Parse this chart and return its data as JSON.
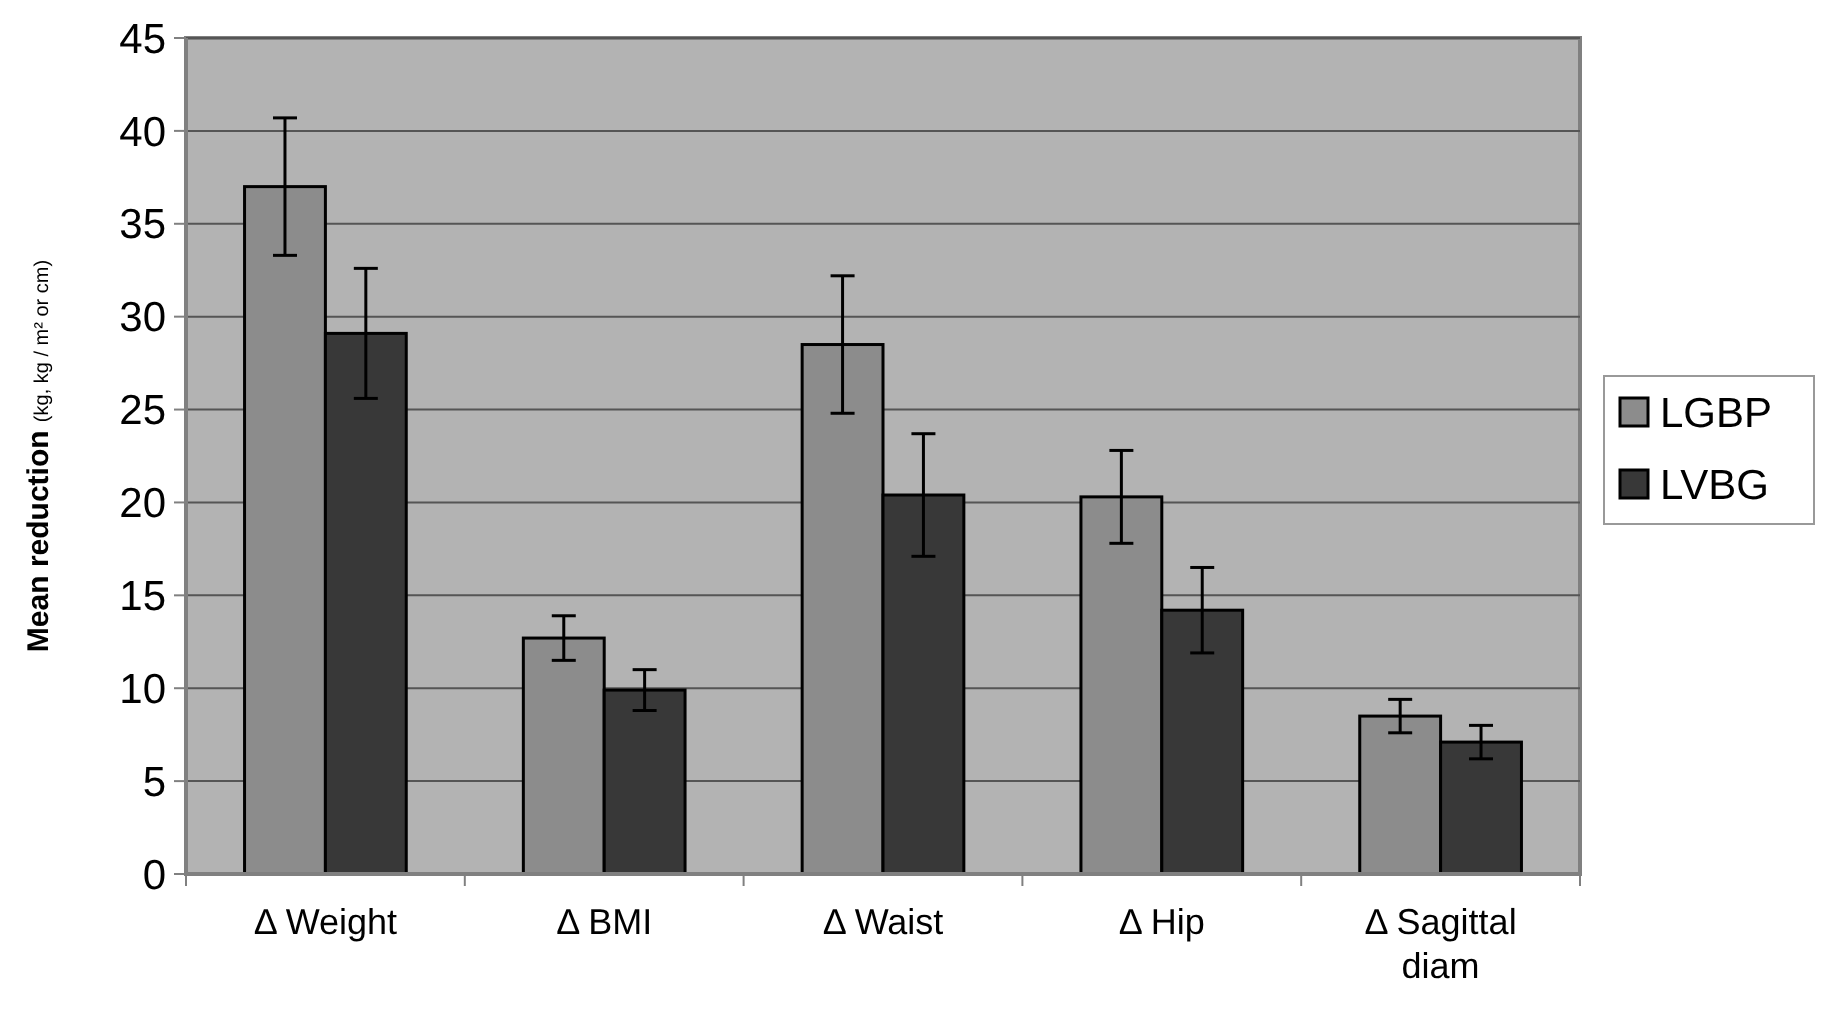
{
  "chart_data": {
    "type": "bar",
    "ylabel": "Mean reduction (kg, kg / m² or cm)",
    "categories": [
      "Δ Weight",
      "Δ BMI",
      "Δ Waist",
      "Δ Hip",
      "Δ Sagittal diam"
    ],
    "series": [
      {
        "name": "LGBP",
        "color": "#8c8c8c",
        "values": [
          37,
          12.7,
          28.5,
          20.3,
          8.5
        ],
        "errors": [
          3.7,
          1.2,
          3.7,
          2.5,
          0.9
        ]
      },
      {
        "name": "LVBG",
        "color": "#383838",
        "values": [
          29.1,
          9.9,
          20.4,
          14.2,
          7.1
        ],
        "errors": [
          3.5,
          1.1,
          3.3,
          2.3,
          0.9
        ]
      }
    ],
    "ylim": [
      0,
      45
    ],
    "yticks": [
      0,
      5,
      10,
      15,
      20,
      25,
      30,
      35,
      40,
      45
    ],
    "grid": "y",
    "legend": "right"
  }
}
